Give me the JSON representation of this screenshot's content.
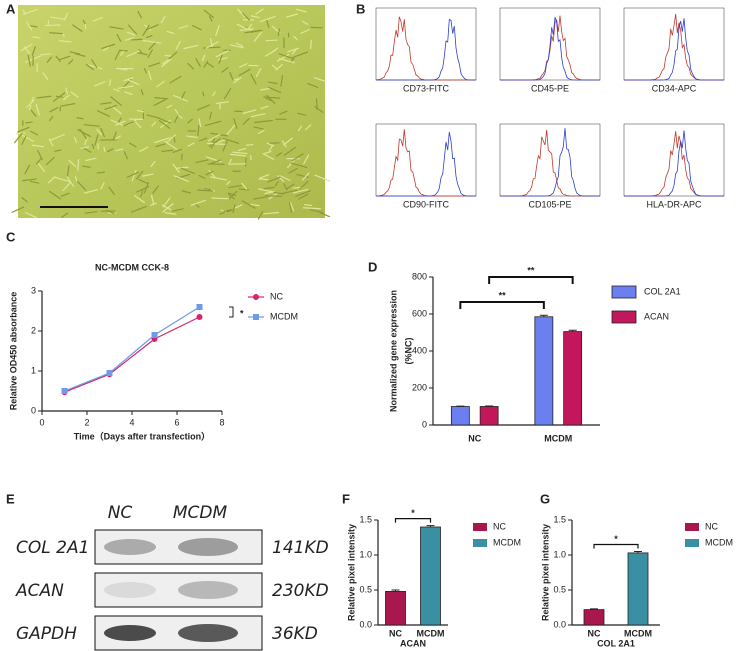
{
  "panel_labels": [
    "A",
    "B",
    "C",
    "D",
    "E",
    "F",
    "G"
  ],
  "flow_cytometry": {
    "markers": [
      "CD73-FITC",
      "CD45-PE",
      "CD34-APC",
      "CD90-FITC",
      "CD105-PE",
      "HLA-DR-APC"
    ]
  },
  "western_blot": {
    "columns": [
      "NC",
      "MCDM"
    ],
    "rows": [
      {
        "protein": "COL 2A1",
        "size": "141KD"
      },
      {
        "protein": "ACAN",
        "size": "230KD"
      },
      {
        "protein": "GAPDH",
        "size": "36KD"
      }
    ]
  },
  "chart_data": [
    {
      "type": "line",
      "title": "NC-MCDM CCK-8",
      "x_label": "Time（Days after transfection）",
      "y_label": "Relative OD450 absorbance",
      "x": [
        1,
        3,
        5,
        7
      ],
      "series": [
        {
          "name": "NC",
          "color": "#d6246e",
          "marker": "circle",
          "values": [
            0.47,
            0.92,
            1.8,
            2.35
          ]
        },
        {
          "name": "MCDM",
          "color": "#6b9bea",
          "marker": "square",
          "values": [
            0.5,
            0.95,
            1.9,
            2.6
          ]
        }
      ],
      "xlim": [
        0,
        8
      ],
      "xticks": [
        0,
        2,
        4,
        6,
        8
      ],
      "ylim": [
        0,
        3
      ],
      "yticks": [
        0,
        1,
        2,
        3
      ],
      "annotations": [
        "*"
      ]
    },
    {
      "type": "bar",
      "y_label": [
        "Normalized gene expression",
        "(%NC)"
      ],
      "categories": [
        "NC",
        "MCDM"
      ],
      "series": [
        {
          "name": "COL 2A1",
          "color": "#6b7ff0",
          "values": [
            100,
            585
          ],
          "errors": [
            2,
            8
          ]
        },
        {
          "name": "ACAN",
          "color": "#c2185b",
          "values": [
            100,
            505
          ],
          "errors": [
            3,
            7
          ]
        }
      ],
      "ylim": [
        0,
        800
      ],
      "yticks": [
        0,
        200,
        400,
        600,
        800
      ],
      "annotations": [
        "**",
        "**"
      ]
    },
    {
      "type": "bar",
      "x_label": "ACAN",
      "y_label": "Relative pixel intensity",
      "categories": [
        "NC",
        "MCDM"
      ],
      "values": [
        0.48,
        1.4
      ],
      "errors": [
        0.02,
        0.02
      ],
      "colors": [
        "#a8174e",
        "#3a8fa3"
      ],
      "ylim": [
        0,
        1.5
      ],
      "yticks": [
        {
          "value": 0,
          "label": "0.0"
        },
        {
          "value": 0.5,
          "label": "0.5"
        },
        {
          "value": 1,
          "label": "1.0"
        },
        {
          "value": 1.5,
          "label": "1.5"
        }
      ],
      "annotations": [
        "*"
      ]
    },
    {
      "type": "bar",
      "x_label": "COL 2A1",
      "y_label": "Relative pixel intensity",
      "categories": [
        "NC",
        "MCDM"
      ],
      "values": [
        0.22,
        1.03
      ],
      "errors": [
        0.01,
        0.02
      ],
      "colors": [
        "#a8174e",
        "#3a8fa3"
      ],
      "ylim": [
        0,
        1.5
      ],
      "yticks": [
        {
          "value": 0,
          "label": "0.0"
        },
        {
          "value": 0.5,
          "label": "0.5"
        },
        {
          "value": 1,
          "label": "1.0"
        },
        {
          "value": 1.5,
          "label": "1.5"
        }
      ],
      "annotations": [
        "*"
      ]
    }
  ]
}
